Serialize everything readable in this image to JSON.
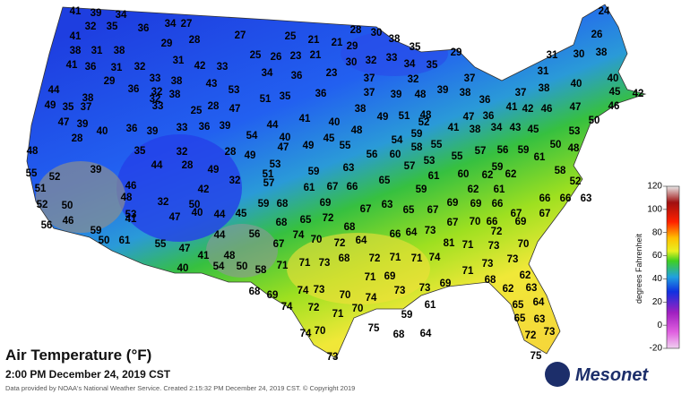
{
  "title": "Air Temperature (°F)",
  "subtitle": "2:00 PM December 24, 2019 CST",
  "footer": "Data provided by NOAA's National Weather Service. Created 2:15:32 PM December 24, 2019 CST. © Copyright 2019",
  "logo": "Mesonet",
  "legend": {
    "label": "degrees Fahrenheit",
    "ticks": [
      120,
      100,
      80,
      60,
      40,
      20,
      0,
      -20
    ]
  },
  "station_values": [
    41,
    39,
    34,
    24,
    32,
    35,
    36,
    34,
    27,
    28,
    30,
    26,
    41,
    29,
    28,
    27,
    25,
    21,
    21,
    29,
    38,
    35,
    38,
    31,
    38,
    25,
    26,
    23,
    21,
    30,
    32,
    33,
    34,
    29,
    31,
    30,
    38,
    41,
    36,
    31,
    32,
    31,
    42,
    33,
    35,
    31,
    29,
    33,
    38,
    34,
    36,
    23,
    37,
    32,
    37,
    44,
    36,
    32,
    38,
    43,
    53,
    39,
    38,
    40,
    40,
    38,
    32,
    51,
    35,
    36,
    37,
    39,
    48,
    36,
    37,
    38,
    45,
    42,
    49,
    35,
    37,
    33,
    25,
    28,
    47,
    38,
    49,
    51,
    48,
    41,
    42,
    46,
    47,
    46,
    47,
    39,
    44,
    41,
    40,
    52,
    47,
    36,
    50,
    40,
    36,
    39,
    33,
    36,
    39,
    54,
    40,
    48,
    54,
    59,
    41,
    38,
    34,
    43,
    45,
    53,
    28,
    47,
    49,
    45,
    50,
    48,
    35,
    32,
    28,
    49,
    55,
    56,
    60,
    58,
    55,
    57,
    56,
    59,
    48,
    44,
    28,
    49,
    53,
    59,
    63,
    57,
    53,
    55,
    59,
    61,
    55,
    52,
    39,
    32,
    51,
    65,
    61,
    60,
    62,
    62,
    58,
    51,
    46,
    42,
    57,
    59,
    62,
    61,
    52,
    52,
    50,
    48,
    59,
    68,
    61,
    67,
    66,
    69,
    67,
    63,
    65,
    67,
    69,
    69,
    66,
    66,
    66,
    63,
    53,
    32,
    50,
    45,
    65,
    72,
    67,
    67,
    56,
    46,
    41,
    47,
    40,
    44,
    68,
    68,
    67,
    70,
    66,
    69,
    59,
    74,
    66,
    64,
    73,
    72,
    50,
    61,
    55,
    44,
    56,
    70,
    72,
    64,
    81,
    71,
    73,
    70,
    47,
    41,
    48,
    67,
    72,
    71,
    74,
    71,
    73,
    40,
    54,
    50,
    58,
    71,
    71,
    73,
    68,
    71,
    71,
    73,
    68,
    69,
    74,
    73,
    70,
    74,
    69,
    73,
    73,
    69,
    68,
    62,
    62,
    63,
    74,
    72,
    71,
    70,
    61,
    59,
    65,
    64,
    75,
    68,
    64,
    74,
    70,
    65,
    63,
    72,
    73,
    73,
    75
  ]
}
